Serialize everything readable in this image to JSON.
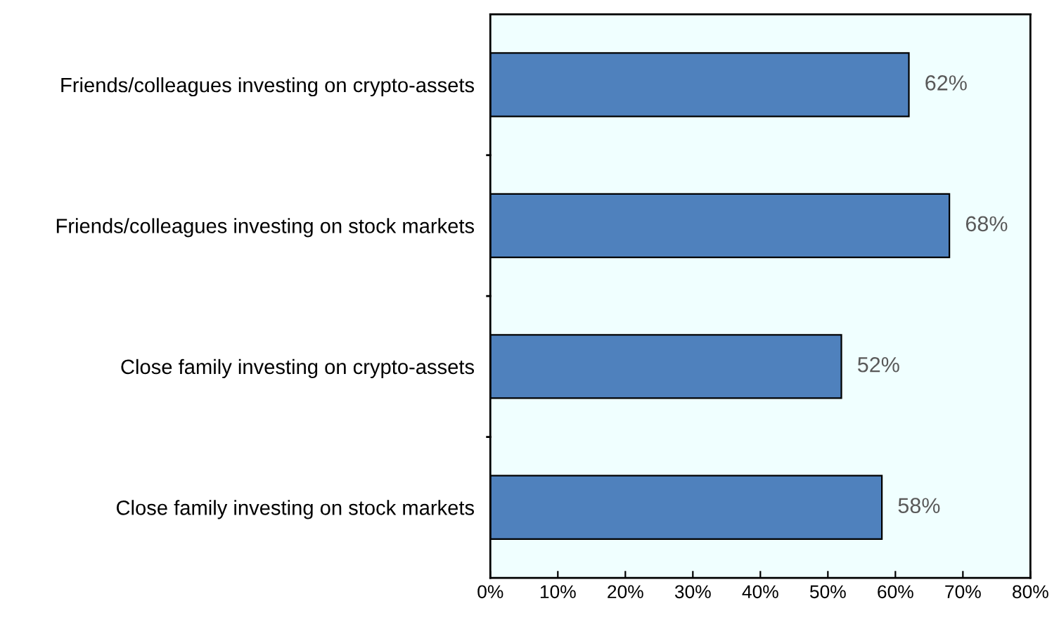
{
  "chart_data": {
    "type": "bar",
    "orientation": "horizontal",
    "categories": [
      "Friends/colleagues investing on crypto-assets",
      "Friends/colleagues investing on stock markets",
      "Close family investing on crypto-assets",
      "Close family investing on stock markets"
    ],
    "values": [
      62,
      68,
      52,
      58
    ],
    "value_labels": [
      "62%",
      "68%",
      "52%",
      "58%"
    ],
    "color": "#4f81bd",
    "xlim": [
      0,
      80
    ],
    "xticks": [
      {
        "value": 0,
        "label": "0%"
      },
      {
        "value": 10,
        "label": "10%"
      },
      {
        "value": 20,
        "label": "20%"
      },
      {
        "value": 30,
        "label": "30%"
      },
      {
        "value": 40,
        "label": "40%"
      },
      {
        "value": 50,
        "label": "50%"
      },
      {
        "value": 60,
        "label": "60%"
      },
      {
        "value": 70,
        "label": "70%"
      },
      {
        "value": 80,
        "label": "80%"
      }
    ],
    "grid": false
  }
}
